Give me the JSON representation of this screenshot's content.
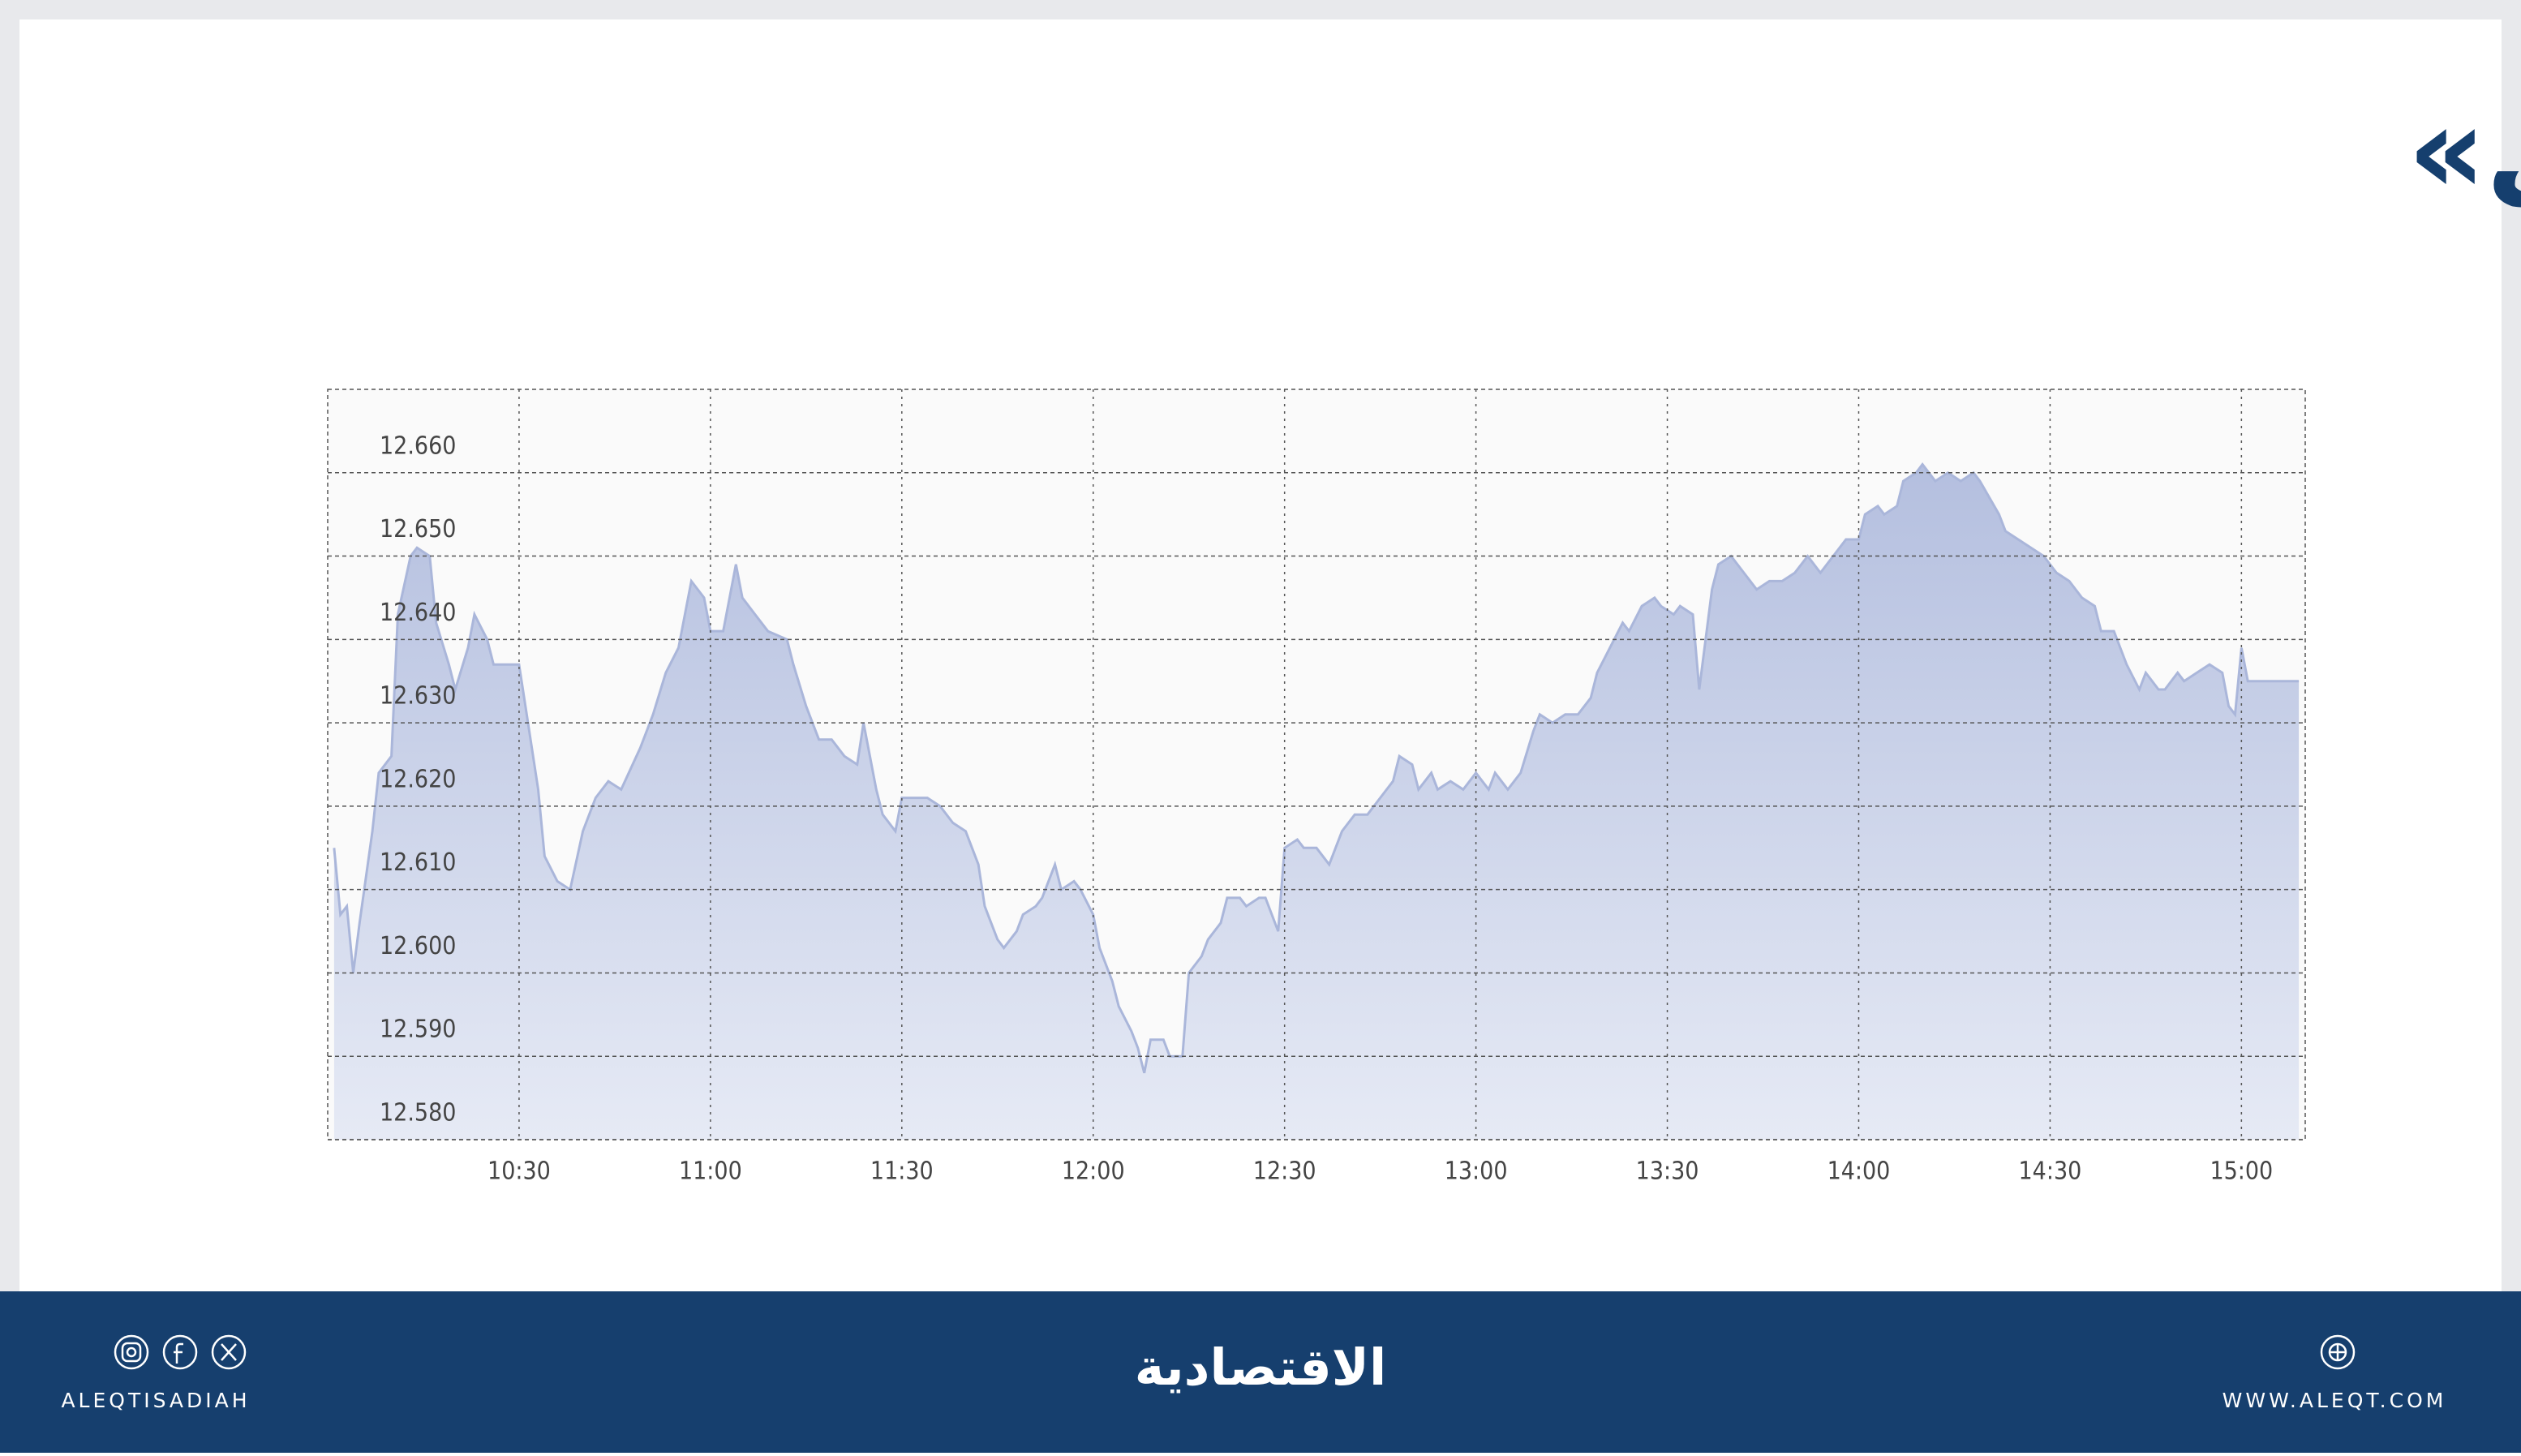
{
  "chart_data": {
    "type": "area",
    "title": "مؤشر «تاسي»",
    "color": "#aab6da",
    "grid": true,
    "x": [
      "10:01",
      "10:02",
      "10:03",
      "10:04",
      "10:05",
      "10:07",
      "10:08",
      "10:10",
      "10:11",
      "10:13",
      "10:14",
      "10:16",
      "10:17",
      "10:19",
      "10:20",
      "10:22",
      "10:23",
      "10:25",
      "10:26",
      "10:30",
      "10:31",
      "10:33",
      "10:34",
      "10:36",
      "10:38",
      "10:40",
      "10:42",
      "10:44",
      "10:46",
      "10:49",
      "10:51",
      "10:53",
      "10:55",
      "10:57",
      "10:59",
      "11:00",
      "11:02",
      "11:04",
      "11:05",
      "11:07",
      "11:09",
      "11:12",
      "11:13",
      "11:15",
      "11:17",
      "11:19",
      "11:21",
      "11:23",
      "11:24",
      "11:26",
      "11:27",
      "11:29",
      "11:30",
      "11:32",
      "11:34",
      "11:36",
      "11:38",
      "11:40",
      "11:42",
      "11:43",
      "11:45",
      "11:46",
      "11:48",
      "11:49",
      "11:51",
      "11:52",
      "11:54",
      "11:55",
      "11:57",
      "11:58",
      "12:00",
      "12:01",
      "12:03",
      "12:04",
      "12:06",
      "12:07",
      "12:08",
      "12:09",
      "12:11",
      "12:12",
      "12:14",
      "12:15",
      "12:17",
      "12:18",
      "12:20",
      "12:21",
      "12:23",
      "12:24",
      "12:26",
      "12:27",
      "12:29",
      "12:30",
      "12:32",
      "12:33",
      "12:35",
      "12:37",
      "12:39",
      "12:41",
      "12:43",
      "12:45",
      "12:47",
      "12:48",
      "12:50",
      "12:51",
      "12:53",
      "12:54",
      "12:56",
      "12:58",
      "13:00",
      "13:02",
      "13:03",
      "13:05",
      "13:07",
      "13:09",
      "13:10",
      "13:12",
      "13:14",
      "13:16",
      "13:18",
      "13:19",
      "13:21",
      "13:23",
      "13:24",
      "13:26",
      "13:28",
      "13:29",
      "13:31",
      "13:32",
      "13:34",
      "13:35",
      "13:37",
      "13:38",
      "13:40",
      "13:42",
      "13:44",
      "13:46",
      "13:48",
      "13:50",
      "13:52",
      "13:54",
      "13:56",
      "13:58",
      "14:00",
      "14:01",
      "14:03",
      "14:04",
      "14:06",
      "14:07",
      "14:09",
      "14:10",
      "14:12",
      "14:14",
      "14:16",
      "14:18",
      "14:19",
      "14:22",
      "14:23",
      "14:25",
      "14:27",
      "14:29",
      "14:31",
      "14:33",
      "14:35",
      "14:37",
      "14:38",
      "14:40",
      "14:42",
      "14:44",
      "14:45",
      "14:47",
      "14:48",
      "14:50",
      "14:51",
      "14:53",
      "14:55",
      "14:57",
      "14:58",
      "14:59",
      "15:00",
      "15:01",
      "15:03",
      "15:09"
    ],
    "values": [
      12615,
      12607,
      12608,
      12600,
      12606,
      12617,
      12624,
      12626,
      12643,
      12650,
      12651,
      12650,
      12642,
      12637,
      12634,
      12639,
      12643,
      12640,
      12637,
      12637,
      12632,
      12622,
      12614,
      12611,
      12610,
      12617,
      12621,
      12623,
      12622,
      12627,
      12631,
      12636,
      12639,
      12647,
      12645,
      12641,
      12641,
      12649,
      12645,
      12643,
      12641,
      12640,
      12637,
      12632,
      12628,
      12628,
      12626,
      12625,
      12630,
      12622,
      12619,
      12617,
      12621,
      12621,
      12621,
      12620,
      12618,
      12617,
      12613,
      12608,
      12604,
      12603,
      12605,
      12607,
      12608,
      12609,
      12613,
      12610,
      12611,
      12610,
      12607,
      12603,
      12599,
      12596,
      12593,
      12591,
      12588,
      12592,
      12592,
      12590,
      12590,
      12600,
      12602,
      12604,
      12606,
      12609,
      12609,
      12608,
      12609,
      12609,
      12605,
      12615,
      12616,
      12615,
      12615,
      12613,
      12617,
      12619,
      12619,
      12621,
      12623,
      12626,
      12625,
      12622,
      12624,
      12622,
      12623,
      12622,
      12624,
      12622,
      12624,
      12622,
      12624,
      12629,
      12631,
      12630,
      12631,
      12631,
      12633,
      12636,
      12639,
      12642,
      12641,
      12644,
      12645,
      12644,
      12643,
      12644,
      12643,
      12634,
      12646,
      12649,
      12650,
      12648,
      12646,
      12647,
      12647,
      12648,
      12650,
      12648,
      12650,
      12652,
      12652,
      12655,
      12656,
      12655,
      12656,
      12659,
      12660,
      12661,
      12659,
      12660,
      12659,
      12660,
      12659,
      12655,
      12653,
      12652,
      12651,
      12650,
      12648,
      12647,
      12645,
      12644,
      12641,
      12641,
      12637,
      12634,
      12636,
      12634,
      12634,
      12636,
      12635,
      12636,
      12637,
      12636,
      12632,
      12631,
      12639,
      12635,
      12635,
      12635
    ],
    "xlim": [
      "10:00",
      "15:10"
    ],
    "xticks": [
      "10:30",
      "11:00",
      "11:30",
      "12:00",
      "12:30",
      "13:00",
      "13:30",
      "14:00",
      "14:30",
      "15:00"
    ],
    "ylim": [
      12580,
      12670
    ],
    "yticks": [
      {
        "value": 12580,
        "label": "12.580"
      },
      {
        "value": 12590,
        "label": "12.590"
      },
      {
        "value": 12600,
        "label": "12.600"
      },
      {
        "value": 12610,
        "label": "12.610"
      },
      {
        "value": 12620,
        "label": "12.620"
      },
      {
        "value": 12630,
        "label": "12.630"
      },
      {
        "value": 12640,
        "label": "12.640"
      },
      {
        "value": 12650,
        "label": "12.650"
      },
      {
        "value": 12660,
        "label": "12.660"
      }
    ]
  },
  "footer": {
    "social": "ALEQTISADIAH",
    "logo": "الاقتصادية",
    "website": "WWW.ALEQT.COM"
  }
}
